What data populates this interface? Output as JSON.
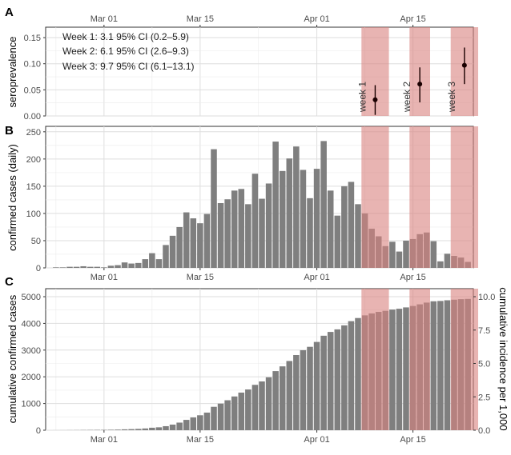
{
  "chart_data": [
    {
      "panel": "A",
      "type": "scatter",
      "ylabel": "seroprevalence",
      "ylim": [
        0,
        0.17
      ],
      "yticks": [
        "0.00",
        "0.05",
        "0.10",
        "0.15"
      ],
      "ytick_values": [
        0,
        0.05,
        0.1,
        0.15
      ],
      "xticks": [
        "Mar 01",
        "Mar 15",
        "Apr 01",
        "Apr 15"
      ],
      "annotations": [
        "Week 1: 3.1 95% CI (0.2–5.9)",
        "Week 2: 6.1 95% CI (2.6–9.3)",
        "Week 3: 9.7 95% CI (6.1–13.1)"
      ],
      "points": [
        {
          "label": "week 1",
          "y": 0.031,
          "ci": [
            0.002,
            0.059
          ]
        },
        {
          "label": "week 2",
          "y": 0.061,
          "ci": [
            0.026,
            0.093
          ]
        },
        {
          "label": "week 3",
          "y": 0.097,
          "ci": [
            0.061,
            0.131
          ]
        }
      ],
      "grid": true
    },
    {
      "panel": "B",
      "type": "bar",
      "ylabel": "confirmed cases (daily)",
      "ylim": [
        0,
        260
      ],
      "yticks": [
        "0",
        "50",
        "100",
        "150",
        "200",
        "250"
      ],
      "ytick_values": [
        0,
        50,
        100,
        150,
        200,
        250
      ],
      "xticks": [
        "Mar 01",
        "Mar 15",
        "Apr 01",
        "Apr 15"
      ],
      "values": [
        1,
        1,
        2,
        2,
        3,
        2,
        2,
        1,
        4,
        5,
        10,
        8,
        9,
        16,
        27,
        16,
        42,
        59,
        75,
        102,
        91,
        82,
        99,
        218,
        119,
        126,
        142,
        145,
        117,
        173,
        127,
        155,
        232,
        178,
        201,
        223,
        180,
        128,
        182,
        233,
        142,
        96,
        150,
        158,
        117,
        100,
        72,
        58,
        40,
        48,
        30,
        50,
        53,
        62,
        65,
        49,
        12,
        26,
        22,
        19,
        11
      ],
      "grid": true
    },
    {
      "panel": "C",
      "type": "bar",
      "ylabel": "cumulative confirmed cases",
      "ylabel_right": "cumulative incidence per 1,000",
      "ylim": [
        0,
        5300
      ],
      "yticks": [
        "0",
        "1000",
        "2000",
        "3000",
        "4000",
        "5000"
      ],
      "ytick_values": [
        0,
        1000,
        2000,
        3000,
        4000,
        5000
      ],
      "yticks_right": [
        "0.0",
        "2.5",
        "5.0",
        "7.5",
        "10.0"
      ],
      "ytick_values_right": [
        0,
        2.5,
        5.0,
        7.5,
        10.0
      ],
      "xticks": [
        "Mar 01",
        "Mar 15",
        "Apr 01",
        "Apr 15"
      ],
      "grid": true
    }
  ],
  "colors": {
    "bar": "#7f7f7f",
    "shade": "#d9827f",
    "grid": "#ebebeb",
    "point": "#1a0000"
  }
}
